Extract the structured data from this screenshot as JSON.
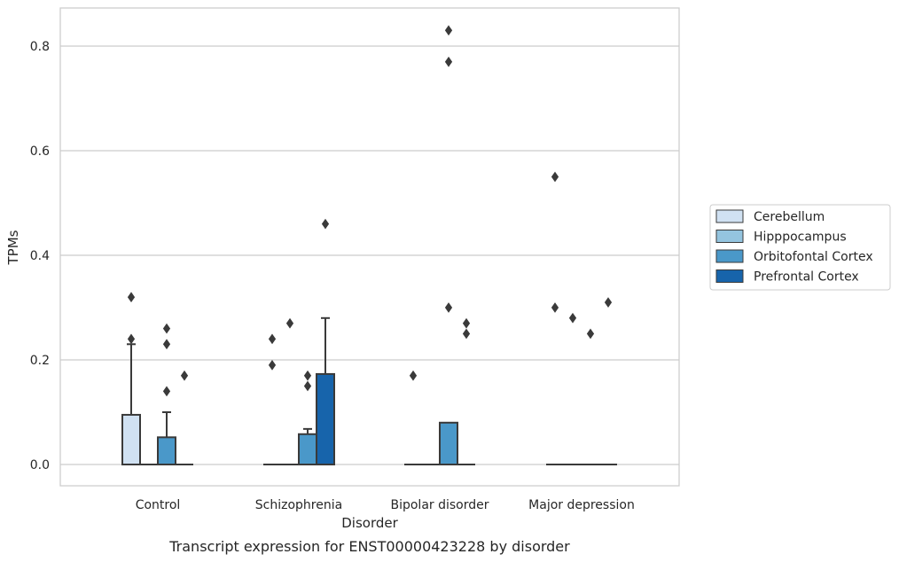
{
  "chart_data": {
    "type": "box",
    "xlabel": "Disorder",
    "ylabel": "TPMs",
    "caption": "Transcript expression for ENST00000423228 by disorder",
    "ylim": [
      -0.04,
      0.875
    ],
    "yticks": [
      "0.0",
      "0.2",
      "0.4",
      "0.6",
      "0.8"
    ],
    "grid": "horizontal",
    "legend_position": "right",
    "categories": [
      "Control",
      "Schizophrenia",
      "Bipolar disorder",
      "Major depression"
    ],
    "series": [
      {
        "name": "Cerebellum",
        "color": "#d0e1f2",
        "boxes": [
          {
            "q1": 0,
            "median": 0,
            "q3": 0.095,
            "whislo": 0,
            "whishi": 0.23,
            "fliers": [
              0.24,
              0.32
            ]
          },
          {
            "q1": 0,
            "median": 0,
            "q3": 0,
            "whislo": 0,
            "whishi": 0,
            "fliers": [
              0.19,
              0.24
            ]
          },
          {
            "q1": 0,
            "median": 0,
            "q3": 0,
            "whislo": 0,
            "whishi": 0,
            "fliers": [
              0.17
            ]
          },
          {
            "q1": 0,
            "median": 0,
            "q3": 0,
            "whislo": 0,
            "whishi": 0,
            "fliers": [
              0.3,
              0.55
            ]
          }
        ]
      },
      {
        "name": "Hipppocampus",
        "color": "#94c4df",
        "boxes": [
          {
            "q1": 0,
            "median": 0,
            "q3": 0,
            "whislo": 0,
            "whishi": 0,
            "fliers": []
          },
          {
            "q1": 0,
            "median": 0,
            "q3": 0,
            "whislo": 0,
            "whishi": 0,
            "fliers": [
              0.27
            ]
          },
          {
            "q1": 0,
            "median": 0,
            "q3": 0,
            "whislo": 0,
            "whishi": 0,
            "fliers": []
          },
          {
            "q1": 0,
            "median": 0,
            "q3": 0,
            "whislo": 0,
            "whishi": 0,
            "fliers": [
              0.28
            ]
          }
        ]
      },
      {
        "name": "Orbitofontal Cortex",
        "color": "#4a98c9",
        "boxes": [
          {
            "q1": 0,
            "median": 0,
            "q3": 0.052,
            "whislo": 0,
            "whishi": 0.1,
            "fliers": [
              0.14,
              0.23,
              0.26
            ]
          },
          {
            "q1": 0,
            "median": 0,
            "q3": 0.058,
            "whislo": 0,
            "whishi": 0.068,
            "fliers": [
              0.15,
              0.17
            ]
          },
          {
            "q1": 0,
            "median": 0,
            "q3": 0.08,
            "whislo": 0,
            "whishi": 0.08,
            "fliers": [
              0.3,
              0.77,
              0.83
            ]
          },
          {
            "q1": 0,
            "median": 0,
            "q3": 0,
            "whislo": 0,
            "whishi": 0,
            "fliers": [
              0.25
            ]
          }
        ]
      },
      {
        "name": "Prefrontal Cortex",
        "color": "#1764ab",
        "boxes": [
          {
            "q1": 0,
            "median": 0,
            "q3": 0,
            "whislo": 0,
            "whishi": 0,
            "fliers": [
              0.17
            ]
          },
          {
            "q1": 0,
            "median": 0,
            "q3": 0.173,
            "whislo": 0,
            "whishi": 0.28,
            "fliers": [
              0.46
            ]
          },
          {
            "q1": 0,
            "median": 0,
            "q3": 0,
            "whislo": 0,
            "whishi": 0,
            "fliers": [
              0.25,
              0.27
            ]
          },
          {
            "q1": 0,
            "median": 0,
            "q3": 0,
            "whislo": 0,
            "whishi": 0,
            "fliers": [
              0.31
            ]
          }
        ]
      }
    ]
  }
}
